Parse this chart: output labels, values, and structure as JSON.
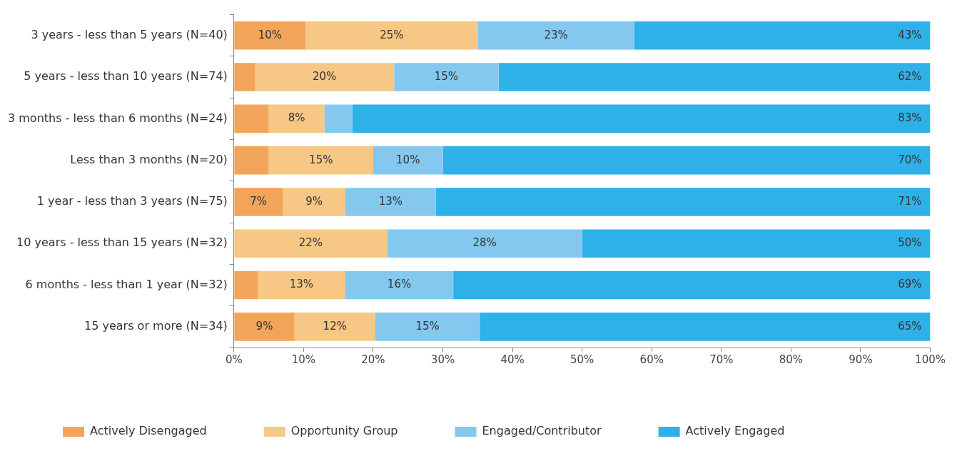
{
  "chart_data": {
    "type": "bar",
    "orientation": "horizontal",
    "stacked": true,
    "legend": "bottom",
    "grid": false,
    "categories": [
      "3 years - less than 5 years (N=40)",
      "5 years - less than 10 years (N=74)",
      "3 months - less than 6 months (N=24)",
      "Less than 3 months (N=20)",
      "1 year - less than 3 years (N=75)",
      "10 years - less than 15 years (N=32)",
      "6 months - less than 1 year (N=32)",
      "15 years or more (N=34)"
    ],
    "series": [
      {
        "name": "Actively Disengaged",
        "color": "#f2a55a",
        "values": [
          10.3,
          3,
          5,
          5,
          7,
          0,
          3.4,
          8.7
        ],
        "value_labels": [
          "10%",
          null,
          null,
          null,
          "7%",
          null,
          null,
          "9%"
        ]
      },
      {
        "name": "Opportunity Group",
        "color": "#f6c785",
        "values": [
          24.7,
          20,
          8,
          15,
          9,
          22,
          12.6,
          11.6
        ],
        "value_labels": [
          "25%",
          "20%",
          "8%",
          "15%",
          "9%",
          "22%",
          "13%",
          "12%"
        ]
      },
      {
        "name": "Engaged/Contributor",
        "color": "#84c8ef",
        "values": [
          22.5,
          15,
          4,
          10,
          13,
          28,
          15.5,
          15
        ],
        "value_labels": [
          "23%",
          "15%",
          null,
          "10%",
          "13%",
          "28%",
          "16%",
          "15%"
        ]
      },
      {
        "name": "Actively Engaged",
        "color": "#2eb1e8",
        "values": [
          42.5,
          62,
          83,
          70,
          71,
          50,
          68.5,
          64.7
        ],
        "value_labels": [
          "43%",
          "62%",
          "83%",
          "70%",
          "71%",
          "50%",
          "69%",
          "65%"
        ]
      }
    ],
    "xlim": [
      0,
      100
    ],
    "xticks": [
      {
        "value": 0,
        "label": "0%"
      },
      {
        "value": 10,
        "label": "10%"
      },
      {
        "value": 20,
        "label": "20%"
      },
      {
        "value": 30,
        "label": "30%"
      },
      {
        "value": 40,
        "label": "40%"
      },
      {
        "value": 50,
        "label": "50%"
      },
      {
        "value": 60,
        "label": "60%"
      },
      {
        "value": 70,
        "label": "70%"
      },
      {
        "value": 80,
        "label": "80%"
      },
      {
        "value": 90,
        "label": "90%"
      },
      {
        "value": 100,
        "label": "100%"
      }
    ]
  }
}
